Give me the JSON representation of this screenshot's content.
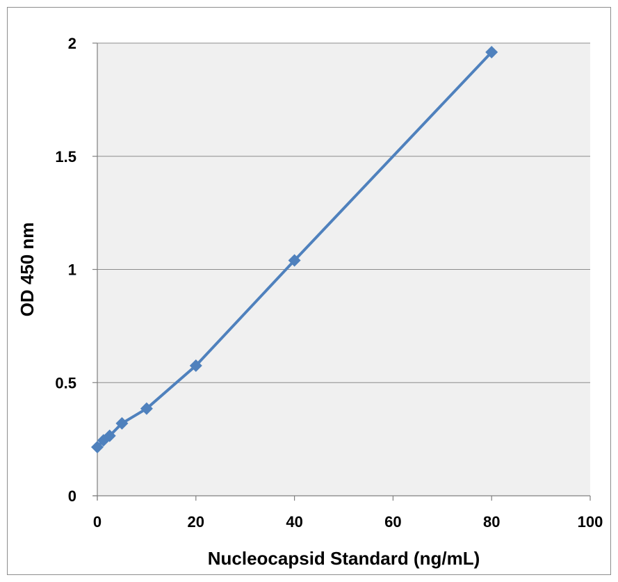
{
  "chart_data": {
    "type": "line",
    "title": "",
    "xlabel": "Nucleocapsid Standard (ng/mL)",
    "ylabel": "OD 450 nm",
    "xlim": [
      0,
      100
    ],
    "ylim": [
      0,
      2
    ],
    "x_ticks": [
      0,
      20,
      40,
      60,
      80,
      100
    ],
    "y_ticks": [
      0,
      0.5,
      1,
      1.5,
      2
    ],
    "x_tick_labels": [
      "0",
      "20",
      "40",
      "60",
      "80",
      "100"
    ],
    "y_tick_labels": [
      "0",
      "0.5",
      "1",
      "1.5",
      "2"
    ],
    "grid": "horizontal",
    "legend": "none",
    "series": [
      {
        "x": [
          0,
          1.25,
          2.5,
          5,
          10,
          20,
          40,
          80
        ],
        "y": [
          0.215,
          0.245,
          0.265,
          0.32,
          0.385,
          0.575,
          1.04,
          1.96
        ],
        "marker": "diamond",
        "color": "#4f81bd"
      }
    ],
    "colors": {
      "plot_background": "#f0f0f0",
      "gridline": "#8c8c8c",
      "axis": "#7f7f7f"
    }
  }
}
